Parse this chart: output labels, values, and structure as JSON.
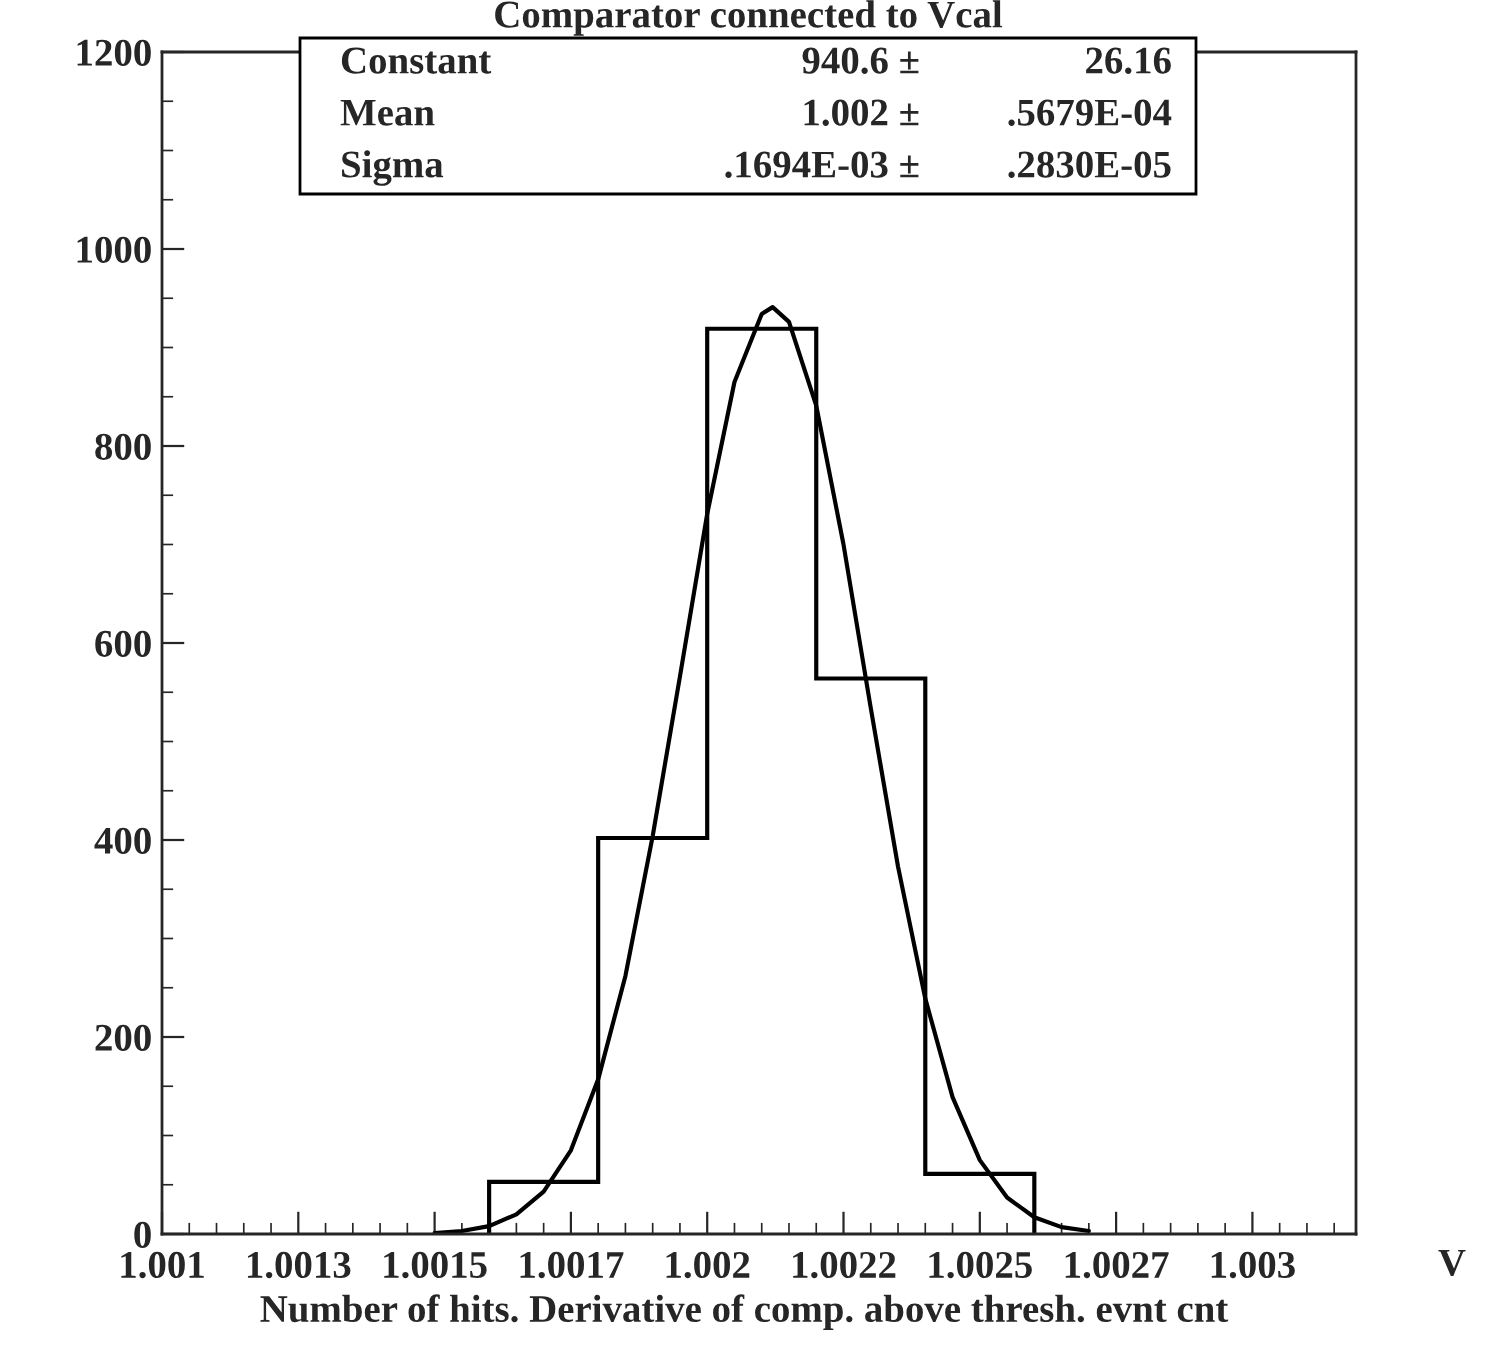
{
  "chart_data": {
    "type": "histogram",
    "title": "Comparator connected to Vcal",
    "xlabel": "Number of hits. Derivative of comp. above thresh. evnt cnt",
    "bins": [
      1.0016,
      1.0018,
      1.002,
      1.0022,
      1.0024,
      1.0026
    ],
    "values": [
      53,
      402,
      919,
      564,
      61
    ],
    "color": "#000000",
    "series": [
      {
        "type": "line",
        "color": "#000000",
        "x": [
          1.0015,
          1.00155,
          1.0016,
          1.00165,
          1.0017,
          1.00175,
          1.0018,
          1.00185,
          1.0019,
          1.00195,
          1.002,
          1.00205,
          1.0021,
          1.00212,
          1.00215,
          1.0022,
          1.00225,
          1.0023,
          1.00235,
          1.0024,
          1.00245,
          1.0025,
          1.00255,
          1.0026,
          1.00265,
          1.0027
        ],
        "values": [
          1,
          3,
          8,
          20,
          43,
          85,
          157,
          262,
          404,
          566,
          731,
          865,
          934,
          941,
          926,
          841,
          700,
          534,
          373,
          239,
          139,
          75,
          37,
          17,
          7,
          3
        ]
      }
    ],
    "xlim": [
      1.001,
      1.00319
    ],
    "ylim": [
      0,
      1200
    ],
    "xticks": [
      {
        "value": 1.001,
        "label": "1.001"
      },
      {
        "value": 1.00125,
        "label": "1.0013"
      },
      {
        "value": 1.0015,
        "label": "1.0015"
      },
      {
        "value": 1.00175,
        "label": "1.0017"
      },
      {
        "value": 1.002,
        "label": "1.002"
      },
      {
        "value": 1.00225,
        "label": "1.0022"
      },
      {
        "value": 1.0025,
        "label": "1.0025"
      },
      {
        "value": 1.00275,
        "label": "1.0027"
      },
      {
        "value": 1.003,
        "label": "1.003"
      }
    ],
    "yticks": [
      0,
      200,
      400,
      600,
      800,
      1000,
      1200
    ],
    "grid": false,
    "legend": false,
    "annotations": [
      "V",
      "Constant",
      "940.6 ±",
      "26.16",
      "Mean",
      "1.002 ±",
      ".5679E-04",
      "Sigma",
      ".1694E-03 ±",
      ".2830E-05"
    ]
  }
}
